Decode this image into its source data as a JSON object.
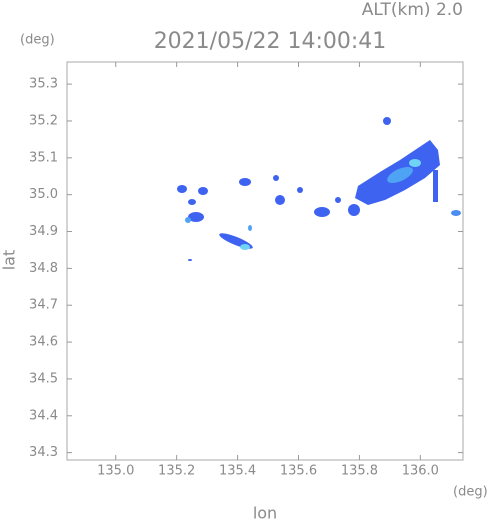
{
  "chart_data": {
    "type": "map",
    "title": "2021/05/22 14:00:41",
    "annotation": "ALT(km) 2.0",
    "xlabel": "lon",
    "ylabel": "lat",
    "xunit": "(deg)",
    "yunit": "(deg)",
    "xlim": [
      134.84,
      136.14
    ],
    "ylim": [
      34.28,
      35.36
    ],
    "xticks": [
      {
        "value": 135,
        "label": "135.0"
      },
      135.2,
      135.4,
      135.6,
      135.8,
      {
        "value": 136,
        "label": "136.0"
      }
    ],
    "yticks": [
      34.3,
      34.4,
      34.5,
      34.6,
      34.7,
      34.8,
      34.9,
      {
        "value": 35,
        "label": "35.0"
      },
      35.1,
      35.2,
      35.3
    ]
  }
}
